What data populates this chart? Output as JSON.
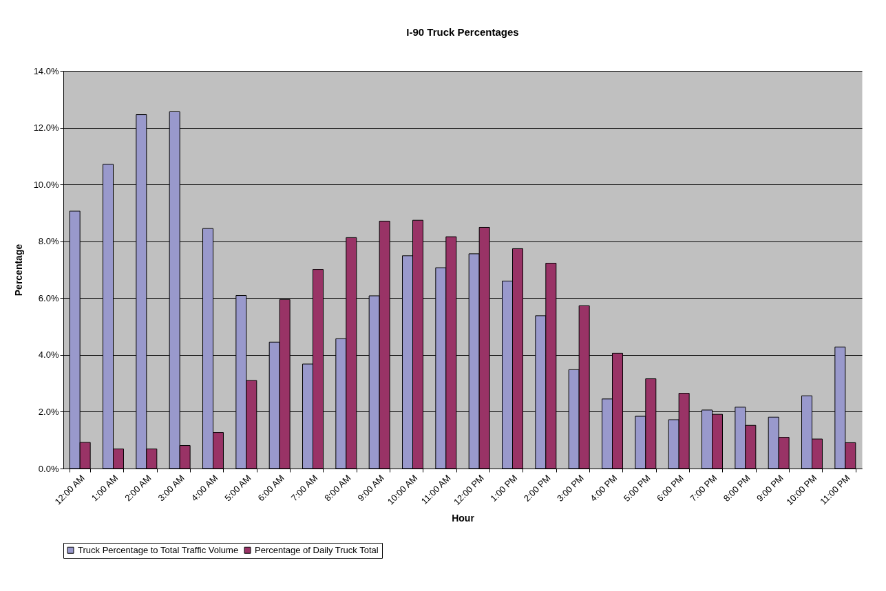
{
  "chart_data": {
    "type": "bar",
    "title": "I-90 Truck Percentages",
    "xlabel": "Hour",
    "ylabel": "Percentage",
    "categories": [
      "12:00 AM",
      "1:00 AM",
      "2:00 AM",
      "3:00 AM",
      "4:00 AM",
      "5:00 AM",
      "6:00 AM",
      "7:00 AM",
      "8:00 AM",
      "9:00 AM",
      "10:00 AM",
      "11:00 AM",
      "12:00 PM",
      "1:00 PM",
      "2:00 PM",
      "3:00 PM",
      "4:00 PM",
      "5:00 PM",
      "6:00 PM",
      "7:00 PM",
      "8:00 PM",
      "9:00 PM",
      "10:00 PM",
      "11:00 PM"
    ],
    "series": [
      {
        "name": "Truck Percentage to Total Traffic Volume",
        "color": "#9999cc",
        "values": [
          9.06,
          10.71,
          12.46,
          12.56,
          8.45,
          6.09,
          4.45,
          3.68,
          4.57,
          6.08,
          7.49,
          7.07,
          7.56,
          6.6,
          5.38,
          3.48,
          2.45,
          1.84,
          1.72,
          2.06,
          2.16,
          1.81,
          2.56,
          4.28
        ]
      },
      {
        "name": "Percentage of Daily Truck Total",
        "color": "#993366",
        "values": [
          0.92,
          0.69,
          0.69,
          0.81,
          1.27,
          3.1,
          5.95,
          7.01,
          8.13,
          8.71,
          8.74,
          8.16,
          8.49,
          7.74,
          7.23,
          5.73,
          4.06,
          3.16,
          2.65,
          1.91,
          1.52,
          1.1,
          1.04,
          0.91
        ]
      }
    ],
    "ylim": [
      0,
      14
    ],
    "yticks": [
      {
        "value": 0,
        "label": "0.0%"
      },
      {
        "value": 2,
        "label": "2.0%"
      },
      {
        "value": 4,
        "label": "4.0%"
      },
      {
        "value": 6,
        "label": "6.0%"
      },
      {
        "value": 8,
        "label": "8.0%"
      },
      {
        "value": 10,
        "label": "10.0%"
      },
      {
        "value": 12,
        "label": "12.0%"
      },
      {
        "value": 14,
        "label": "14.0%"
      }
    ],
    "grid": "y",
    "legend": "bottom"
  }
}
